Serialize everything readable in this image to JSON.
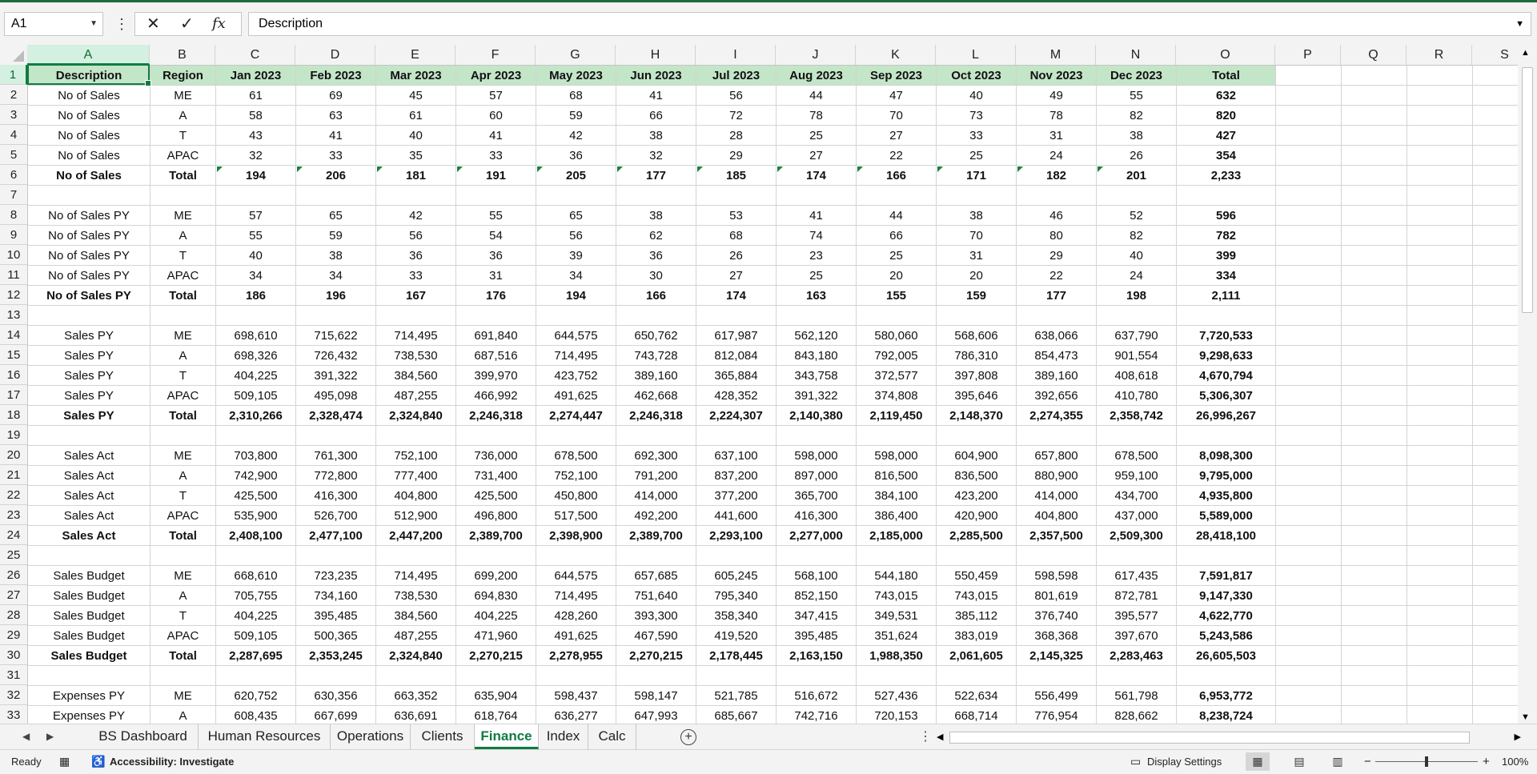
{
  "formula_bar": {
    "name_box": "A1",
    "cancel_icon": "✕",
    "enter_icon": "✓",
    "fx_icon": "fx",
    "content": "Description"
  },
  "columns": [
    "A",
    "B",
    "C",
    "D",
    "E",
    "F",
    "G",
    "H",
    "I",
    "J",
    "K",
    "L",
    "M",
    "N",
    "O",
    "P",
    "Q",
    "R",
    "S"
  ],
  "rows": [
    {
      "n": "1",
      "type": "header",
      "cells": [
        "Description",
        "Region",
        "Jan 2023",
        "Feb 2023",
        "Mar 2023",
        "Apr 2023",
        "May 2023",
        "Jun 2023",
        "Jul 2023",
        "Aug 2023",
        "Sep 2023",
        "Oct 2023",
        "Nov 2023",
        "Dec 2023",
        "Total"
      ]
    },
    {
      "n": "2",
      "type": "data",
      "cells": [
        "No of Sales",
        "ME",
        "61",
        "69",
        "45",
        "57",
        "68",
        "41",
        "56",
        "44",
        "47",
        "40",
        "49",
        "55",
        "632"
      ]
    },
    {
      "n": "3",
      "type": "data",
      "cells": [
        "No of Sales",
        "A",
        "58",
        "63",
        "61",
        "60",
        "59",
        "66",
        "72",
        "78",
        "70",
        "73",
        "78",
        "82",
        "820"
      ]
    },
    {
      "n": "4",
      "type": "data",
      "cells": [
        "No of Sales",
        "T",
        "43",
        "41",
        "40",
        "41",
        "42",
        "38",
        "28",
        "25",
        "27",
        "33",
        "31",
        "38",
        "427"
      ]
    },
    {
      "n": "5",
      "type": "data",
      "cells": [
        "No of Sales",
        "APAC",
        "32",
        "33",
        "35",
        "33",
        "36",
        "32",
        "29",
        "27",
        "22",
        "25",
        "24",
        "26",
        "354"
      ]
    },
    {
      "n": "6",
      "type": "total",
      "flag": true,
      "cells": [
        "No of Sales",
        "Total",
        "194",
        "206",
        "181",
        "191",
        "205",
        "177",
        "185",
        "174",
        "166",
        "171",
        "182",
        "201",
        "2,233"
      ]
    },
    {
      "n": "7",
      "type": "empty",
      "cells": []
    },
    {
      "n": "8",
      "type": "data",
      "cells": [
        "No of Sales PY",
        "ME",
        "57",
        "65",
        "42",
        "55",
        "65",
        "38",
        "53",
        "41",
        "44",
        "38",
        "46",
        "52",
        "596"
      ]
    },
    {
      "n": "9",
      "type": "data",
      "cells": [
        "No of Sales PY",
        "A",
        "55",
        "59",
        "56",
        "54",
        "56",
        "62",
        "68",
        "74",
        "66",
        "70",
        "80",
        "82",
        "782"
      ]
    },
    {
      "n": "10",
      "type": "data",
      "cells": [
        "No of Sales PY",
        "T",
        "40",
        "38",
        "36",
        "36",
        "39",
        "36",
        "26",
        "23",
        "25",
        "31",
        "29",
        "40",
        "399"
      ]
    },
    {
      "n": "11",
      "type": "data",
      "cells": [
        "No of Sales PY",
        "APAC",
        "34",
        "34",
        "33",
        "31",
        "34",
        "30",
        "27",
        "25",
        "20",
        "20",
        "22",
        "24",
        "334"
      ]
    },
    {
      "n": "12",
      "type": "total",
      "cells": [
        "No of Sales PY",
        "Total",
        "186",
        "196",
        "167",
        "176",
        "194",
        "166",
        "174",
        "163",
        "155",
        "159",
        "177",
        "198",
        "2,111"
      ]
    },
    {
      "n": "13",
      "type": "empty",
      "cells": []
    },
    {
      "n": "14",
      "type": "data",
      "cells": [
        "Sales PY",
        "ME",
        "698,610",
        "715,622",
        "714,495",
        "691,840",
        "644,575",
        "650,762",
        "617,987",
        "562,120",
        "580,060",
        "568,606",
        "638,066",
        "637,790",
        "7,720,533"
      ]
    },
    {
      "n": "15",
      "type": "data",
      "cells": [
        "Sales PY",
        "A",
        "698,326",
        "726,432",
        "738,530",
        "687,516",
        "714,495",
        "743,728",
        "812,084",
        "843,180",
        "792,005",
        "786,310",
        "854,473",
        "901,554",
        "9,298,633"
      ]
    },
    {
      "n": "16",
      "type": "data",
      "cells": [
        "Sales PY",
        "T",
        "404,225",
        "391,322",
        "384,560",
        "399,970",
        "423,752",
        "389,160",
        "365,884",
        "343,758",
        "372,577",
        "397,808",
        "389,160",
        "408,618",
        "4,670,794"
      ]
    },
    {
      "n": "17",
      "type": "data",
      "cells": [
        "Sales PY",
        "APAC",
        "509,105",
        "495,098",
        "487,255",
        "466,992",
        "491,625",
        "462,668",
        "428,352",
        "391,322",
        "374,808",
        "395,646",
        "392,656",
        "410,780",
        "5,306,307"
      ]
    },
    {
      "n": "18",
      "type": "total",
      "cells": [
        "Sales PY",
        "Total",
        "2,310,266",
        "2,328,474",
        "2,324,840",
        "2,246,318",
        "2,274,447",
        "2,246,318",
        "2,224,307",
        "2,140,380",
        "2,119,450",
        "2,148,370",
        "2,274,355",
        "2,358,742",
        "26,996,267"
      ]
    },
    {
      "n": "19",
      "type": "empty",
      "cells": []
    },
    {
      "n": "20",
      "type": "data",
      "cells": [
        "Sales Act",
        "ME",
        "703,800",
        "761,300",
        "752,100",
        "736,000",
        "678,500",
        "692,300",
        "637,100",
        "598,000",
        "598,000",
        "604,900",
        "657,800",
        "678,500",
        "8,098,300"
      ]
    },
    {
      "n": "21",
      "type": "data",
      "cells": [
        "Sales Act",
        "A",
        "742,900",
        "772,800",
        "777,400",
        "731,400",
        "752,100",
        "791,200",
        "837,200",
        "897,000",
        "816,500",
        "836,500",
        "880,900",
        "959,100",
        "9,795,000"
      ]
    },
    {
      "n": "22",
      "type": "data",
      "cells": [
        "Sales Act",
        "T",
        "425,500",
        "416,300",
        "404,800",
        "425,500",
        "450,800",
        "414,000",
        "377,200",
        "365,700",
        "384,100",
        "423,200",
        "414,000",
        "434,700",
        "4,935,800"
      ]
    },
    {
      "n": "23",
      "type": "data",
      "cells": [
        "Sales Act",
        "APAC",
        "535,900",
        "526,700",
        "512,900",
        "496,800",
        "517,500",
        "492,200",
        "441,600",
        "416,300",
        "386,400",
        "420,900",
        "404,800",
        "437,000",
        "5,589,000"
      ]
    },
    {
      "n": "24",
      "type": "total",
      "cells": [
        "Sales Act",
        "Total",
        "2,408,100",
        "2,477,100",
        "2,447,200",
        "2,389,700",
        "2,398,900",
        "2,389,700",
        "2,293,100",
        "2,277,000",
        "2,185,000",
        "2,285,500",
        "2,357,500",
        "2,509,300",
        "28,418,100"
      ]
    },
    {
      "n": "25",
      "type": "empty",
      "cells": []
    },
    {
      "n": "26",
      "type": "data",
      "cells": [
        "Sales Budget",
        "ME",
        "668,610",
        "723,235",
        "714,495",
        "699,200",
        "644,575",
        "657,685",
        "605,245",
        "568,100",
        "544,180",
        "550,459",
        "598,598",
        "617,435",
        "7,591,817"
      ]
    },
    {
      "n": "27",
      "type": "data",
      "cells": [
        "Sales Budget",
        "A",
        "705,755",
        "734,160",
        "738,530",
        "694,830",
        "714,495",
        "751,640",
        "795,340",
        "852,150",
        "743,015",
        "743,015",
        "801,619",
        "872,781",
        "9,147,330"
      ]
    },
    {
      "n": "28",
      "type": "data",
      "cells": [
        "Sales Budget",
        "T",
        "404,225",
        "395,485",
        "384,560",
        "404,225",
        "428,260",
        "393,300",
        "358,340",
        "347,415",
        "349,531",
        "385,112",
        "376,740",
        "395,577",
        "4,622,770"
      ]
    },
    {
      "n": "29",
      "type": "data",
      "cells": [
        "Sales Budget",
        "APAC",
        "509,105",
        "500,365",
        "487,255",
        "471,960",
        "491,625",
        "467,590",
        "419,520",
        "395,485",
        "351,624",
        "383,019",
        "368,368",
        "397,670",
        "5,243,586"
      ]
    },
    {
      "n": "30",
      "type": "total",
      "cells": [
        "Sales Budget",
        "Total",
        "2,287,695",
        "2,353,245",
        "2,324,840",
        "2,270,215",
        "2,278,955",
        "2,270,215",
        "2,178,445",
        "2,163,150",
        "1,988,350",
        "2,061,605",
        "2,145,325",
        "2,283,463",
        "26,605,503"
      ]
    },
    {
      "n": "31",
      "type": "empty",
      "cells": []
    },
    {
      "n": "32",
      "type": "data",
      "cells": [
        "Expenses PY",
        "ME",
        "620,752",
        "630,356",
        "663,352",
        "635,904",
        "598,437",
        "598,147",
        "521,785",
        "516,672",
        "527,436",
        "522,634",
        "556,499",
        "561,798",
        "6,953,772"
      ]
    },
    {
      "n": "33",
      "type": "data",
      "cells": [
        "Expenses PY",
        "A",
        "608,435",
        "667,699",
        "636,691",
        "618,764",
        "636,277",
        "647,993",
        "685,667",
        "742,716",
        "720,153",
        "668,714",
        "776,954",
        "828,662",
        "8,238,724"
      ]
    }
  ],
  "sheet_tabs": {
    "tabs": [
      "BS Dashboard",
      "Human Resources",
      "Operations",
      "Clients",
      "Finance",
      "Index",
      "Calc"
    ],
    "active": "Finance",
    "add_icon": "+"
  },
  "status_bar": {
    "mode": "Ready",
    "accessibility": "Accessibility: Investigate",
    "display_settings": "Display Settings",
    "zoom": "100%",
    "zoom_minus": "−",
    "zoom_plus": "+"
  },
  "colors": {
    "accent": "#107c41",
    "header_fill": "#c3e5c8"
  }
}
